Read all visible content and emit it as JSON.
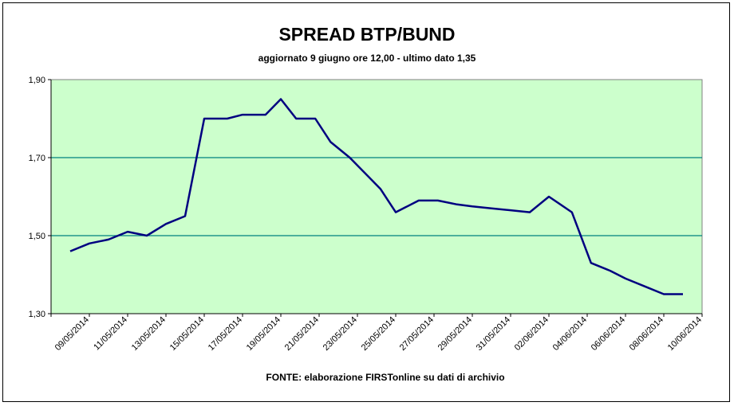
{
  "chart_data": {
    "type": "line",
    "title": "SPREAD BTP/BUND",
    "subtitle": "aggiornato 9 giugno ore 12,00 - ultimo dato 1,35",
    "source": "FONTE:  elaborazione FIRSTonline su dati di archivio",
    "xlabel": "",
    "ylabel": "",
    "ylim": [
      1.3,
      1.9
    ],
    "yticks": [
      "1,90",
      "1,70",
      "1,50",
      "1,30"
    ],
    "ytick_values": [
      1.9,
      1.7,
      1.5,
      1.3
    ],
    "xticks": [
      "09/05/2014",
      "11/05/2014",
      "13/05/2014",
      "15/05/2014",
      "17/05/2014",
      "19/05/2014",
      "21/05/2014",
      "23/05/2014",
      "25/05/2014",
      "27/05/2014",
      "29/05/2014",
      "31/05/2014",
      "02/06/2014",
      "04/06/2014",
      "06/06/2014",
      "08/06/2014",
      "10/06/2014"
    ],
    "grid": "horizontal at 1,50 and 1,70",
    "colors": {
      "plot_bg": "#ccffcc",
      "line": "#000080",
      "grid": "#008080"
    },
    "series": [
      {
        "x": [
          0.5,
          1.0,
          1.5,
          2.0,
          2.5,
          3.0,
          3.5,
          4.0,
          4.6,
          5.0,
          5.6,
          6.0,
          6.4,
          6.9,
          7.3,
          7.8,
          8.3,
          8.6,
          9.0,
          9.6,
          10.1,
          10.6,
          11.0,
          11.5,
          12.0,
          12.5,
          13.0,
          13.6,
          14.1,
          14.6,
          15.0,
          15.5,
          16.0,
          16.5
        ],
        "y": [
          1.46,
          1.48,
          1.49,
          1.51,
          1.5,
          1.53,
          1.55,
          1.8,
          1.8,
          1.81,
          1.81,
          1.85,
          1.8,
          1.8,
          1.74,
          1.7,
          1.65,
          1.62,
          1.56,
          1.59,
          1.59,
          1.58,
          1.575,
          1.57,
          1.565,
          1.56,
          1.6,
          1.56,
          1.43,
          1.41,
          1.39,
          1.37,
          1.35,
          1.35
        ]
      }
    ]
  }
}
